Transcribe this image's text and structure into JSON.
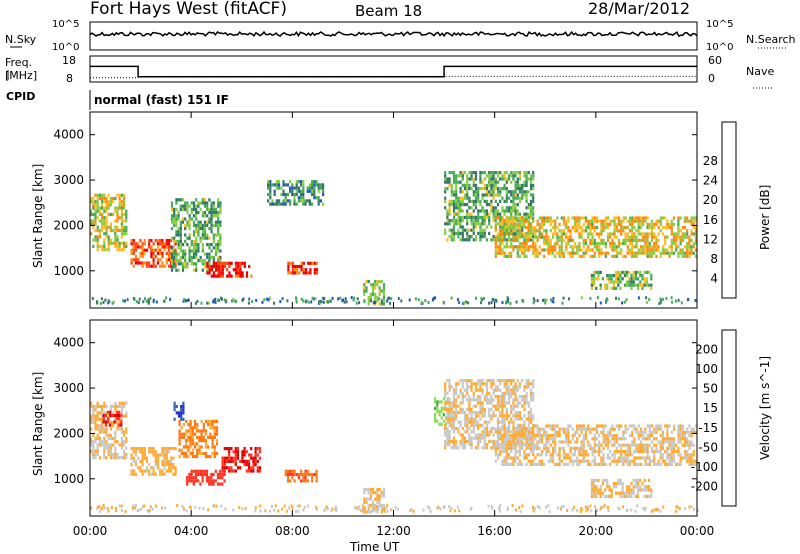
{
  "header": {
    "station": "Fort Hays West (fitACF)",
    "beam": "Beam 18",
    "date": "28/Mar/2012"
  },
  "summary": {
    "nsky_label": "N.Sky",
    "nsky_ticks": [
      "10^5",
      "10^0"
    ],
    "nsearch_label": "N.Search",
    "nsearch_ticks": [
      "10^5",
      "10^0"
    ],
    "freq_label": "Freq.",
    "freq_unit": "[MHz]",
    "freq_ticks": [
      "18",
      "8"
    ],
    "nave_label": "Nave",
    "nave_ticks": [
      "60",
      "0"
    ],
    "cpid_label": "CPID",
    "cpid_value": "normal (fast) 151 IF"
  },
  "chart_data": [
    {
      "type": "line",
      "name": "frequency",
      "x_hours": [
        0,
        1.9,
        1.9,
        14,
        14,
        24
      ],
      "freq_mhz": [
        14,
        14,
        10,
        10,
        14,
        14
      ],
      "nave_x_hours": [
        0,
        1.9,
        1.9,
        24
      ],
      "nave": [
        10,
        10,
        13,
        13
      ]
    },
    {
      "type": "heatmap",
      "name": "power",
      "ylabel": "Slant Range [km]",
      "yticks": [
        "1000",
        "2000",
        "3000",
        "4000"
      ],
      "ylim": [
        180,
        4500
      ],
      "colorbar": {
        "label": "Power [dB]",
        "ticks": [
          "4",
          "8",
          "12",
          "16",
          "20",
          "24",
          "28"
        ],
        "colors": [
          "#0033ff",
          "#2255bb",
          "#337766",
          "#44aa55",
          "#88cc44",
          "#ffbb22",
          "#ff8811",
          "#ff4411",
          "#ee0000"
        ]
      },
      "echo_regions": [
        {
          "t0": 0.0,
          "t1": 1.4,
          "r0": 1500,
          "r1": 2700,
          "level": 0.55
        },
        {
          "t0": 1.6,
          "t1": 3.4,
          "r0": 1100,
          "r1": 1700,
          "level": 0.82
        },
        {
          "t0": 3.2,
          "t1": 5.2,
          "r0": 1000,
          "r1": 2600,
          "level": 0.4
        },
        {
          "t0": 4.6,
          "t1": 6.4,
          "r0": 900,
          "r1": 1200,
          "level": 0.92
        },
        {
          "t0": 7.8,
          "t1": 9.0,
          "r0": 950,
          "r1": 1200,
          "level": 0.85
        },
        {
          "t0": 7.0,
          "t1": 9.2,
          "r0": 2500,
          "r1": 3000,
          "level": 0.3
        },
        {
          "t0": 10.8,
          "t1": 11.6,
          "r0": 300,
          "r1": 800,
          "level": 0.45
        },
        {
          "t0": 14.0,
          "t1": 17.5,
          "r0": 1700,
          "r1": 3200,
          "level": 0.4
        },
        {
          "t0": 16.0,
          "t1": 24.0,
          "r0": 1300,
          "r1": 2200,
          "level": 0.6
        },
        {
          "t0": 19.8,
          "t1": 22.2,
          "r0": 600,
          "r1": 1000,
          "level": 0.45
        }
      ]
    },
    {
      "type": "heatmap",
      "name": "velocity",
      "ylabel": "Slant Range [km]",
      "yticks": [
        "1000",
        "2000",
        "3000",
        "4000"
      ],
      "ylim": [
        180,
        4500
      ],
      "colorbar": {
        "label": "Velocity [m s^-1]",
        "ticks": [
          "200",
          "100",
          "50",
          "15",
          "-15",
          "-50",
          "-100",
          "-200"
        ],
        "colors": [
          "#2233cc",
          "#3366aa",
          "#44aa44",
          "#88dd55",
          "#c8c8c8",
          "#ffaa33",
          "#ff7711",
          "#ff3322",
          "#dd0000"
        ]
      },
      "xlabel": "Time UT",
      "xticks": [
        "00:00",
        "04:00",
        "08:00",
        "12:00",
        "16:00",
        "20:00",
        "00:00"
      ],
      "xlim": [
        0,
        24
      ],
      "echo_regions": [
        {
          "t0": 0.0,
          "t1": 1.4,
          "r0": 1500,
          "r1": 2700,
          "vel": -15
        },
        {
          "t0": 0.5,
          "t1": 1.2,
          "r0": 2200,
          "r1": 2500,
          "vel": -200
        },
        {
          "t0": 1.6,
          "t1": 3.4,
          "r0": 1100,
          "r1": 1700,
          "vel": -30
        },
        {
          "t0": 3.3,
          "t1": 3.7,
          "r0": 2300,
          "r1": 2700,
          "vel": 200
        },
        {
          "t0": 3.5,
          "t1": 5.0,
          "r0": 1500,
          "r1": 2300,
          "vel": -60
        },
        {
          "t0": 3.8,
          "t1": 5.3,
          "r0": 900,
          "r1": 1200,
          "vel": -140
        },
        {
          "t0": 5.2,
          "t1": 6.7,
          "r0": 1200,
          "r1": 1700,
          "vel": -200
        },
        {
          "t0": 7.7,
          "t1": 9.0,
          "r0": 950,
          "r1": 1200,
          "vel": -90
        },
        {
          "t0": 10.8,
          "t1": 11.6,
          "r0": 300,
          "r1": 800,
          "vel": -15
        },
        {
          "t0": 13.6,
          "t1": 14.2,
          "r0": 2200,
          "r1": 2800,
          "vel": 40
        },
        {
          "t0": 14.0,
          "t1": 17.5,
          "r0": 1700,
          "r1": 3200,
          "vel": -10
        },
        {
          "t0": 16.0,
          "t1": 24.0,
          "r0": 1300,
          "r1": 2200,
          "vel": -15
        },
        {
          "t0": 19.8,
          "t1": 22.2,
          "r0": 600,
          "r1": 1000,
          "vel": -15
        }
      ]
    }
  ]
}
